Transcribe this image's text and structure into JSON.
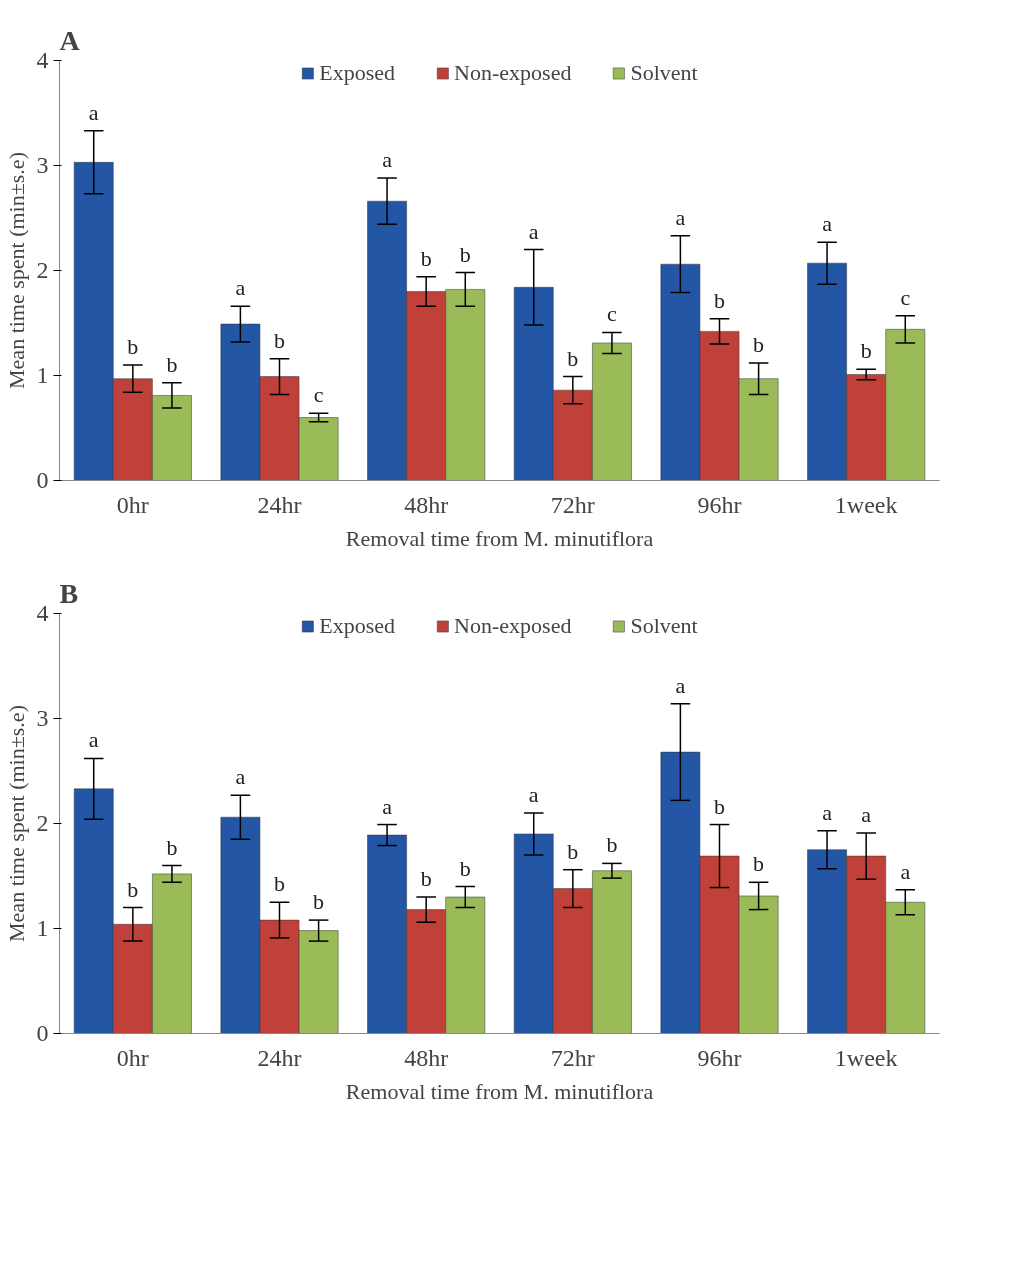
{
  "chart_data": [
    {
      "type": "bar",
      "title": "A",
      "xlabel": "Removal time from M. minutiflora",
      "ylabel": "Mean time spent (min±s.e)",
      "categories": [
        "0hr",
        "24hr",
        "48hr",
        "72hr",
        "96hr",
        "1week"
      ],
      "ylim": [
        0,
        4
      ],
      "yticks": [
        0,
        1,
        2,
        3,
        4
      ],
      "grid": false,
      "legend": "top",
      "series": [
        {
          "name": "Exposed",
          "color": "#2456a6",
          "values": [
            3.03,
            1.49,
            2.66,
            1.84,
            2.06,
            2.07
          ],
          "errors": [
            0.3,
            0.17,
            0.22,
            0.36,
            0.27,
            0.2
          ],
          "value_labels": [
            "a",
            "a",
            "a",
            "a",
            "a",
            "a"
          ]
        },
        {
          "name": "Non-exposed",
          "color": "#c0413a",
          "values": [
            0.97,
            0.99,
            1.8,
            0.86,
            1.42,
            1.01
          ],
          "errors": [
            0.13,
            0.17,
            0.14,
            0.13,
            0.12,
            0.05
          ],
          "value_labels": [
            "b",
            "b",
            "b",
            "b",
            "b",
            "b"
          ]
        },
        {
          "name": "Solvent",
          "color": "#9bbb59",
          "values": [
            0.81,
            0.6,
            1.82,
            1.31,
            0.97,
            1.44
          ],
          "errors": [
            0.12,
            0.04,
            0.16,
            0.1,
            0.15,
            0.13
          ],
          "value_labels": [
            "b",
            "c",
            "b",
            "c",
            "b",
            "c"
          ]
        }
      ]
    },
    {
      "type": "bar",
      "title": "B",
      "xlabel": "Removal time from M. minutiflora",
      "ylabel": "Mean time spent (min±s.e)",
      "categories": [
        "0hr",
        "24hr",
        "48hr",
        "72hr",
        "96hr",
        "1week"
      ],
      "ylim": [
        0,
        4
      ],
      "yticks": [
        0,
        1,
        2,
        3,
        4
      ],
      "grid": false,
      "legend": "top",
      "series": [
        {
          "name": "Exposed",
          "color": "#2456a6",
          "values": [
            2.33,
            2.06,
            1.89,
            1.9,
            2.68,
            1.75
          ],
          "errors": [
            0.29,
            0.21,
            0.1,
            0.2,
            0.46,
            0.18
          ],
          "value_labels": [
            "a",
            "a",
            "a",
            "a",
            "a",
            "a"
          ]
        },
        {
          "name": "Non-exposed",
          "color": "#c0413a",
          "values": [
            1.04,
            1.08,
            1.18,
            1.38,
            1.69,
            1.69
          ],
          "errors": [
            0.16,
            0.17,
            0.12,
            0.18,
            0.3,
            0.22
          ],
          "value_labels": [
            "b",
            "b",
            "b",
            "b",
            "b",
            "a"
          ]
        },
        {
          "name": "Solvent",
          "color": "#9bbb59",
          "values": [
            1.52,
            0.98,
            1.3,
            1.55,
            1.31,
            1.25
          ],
          "errors": [
            0.08,
            0.1,
            0.1,
            0.07,
            0.13,
            0.12
          ],
          "value_labels": [
            "b",
            "b",
            "b",
            "b",
            "b",
            "a"
          ]
        }
      ]
    }
  ]
}
